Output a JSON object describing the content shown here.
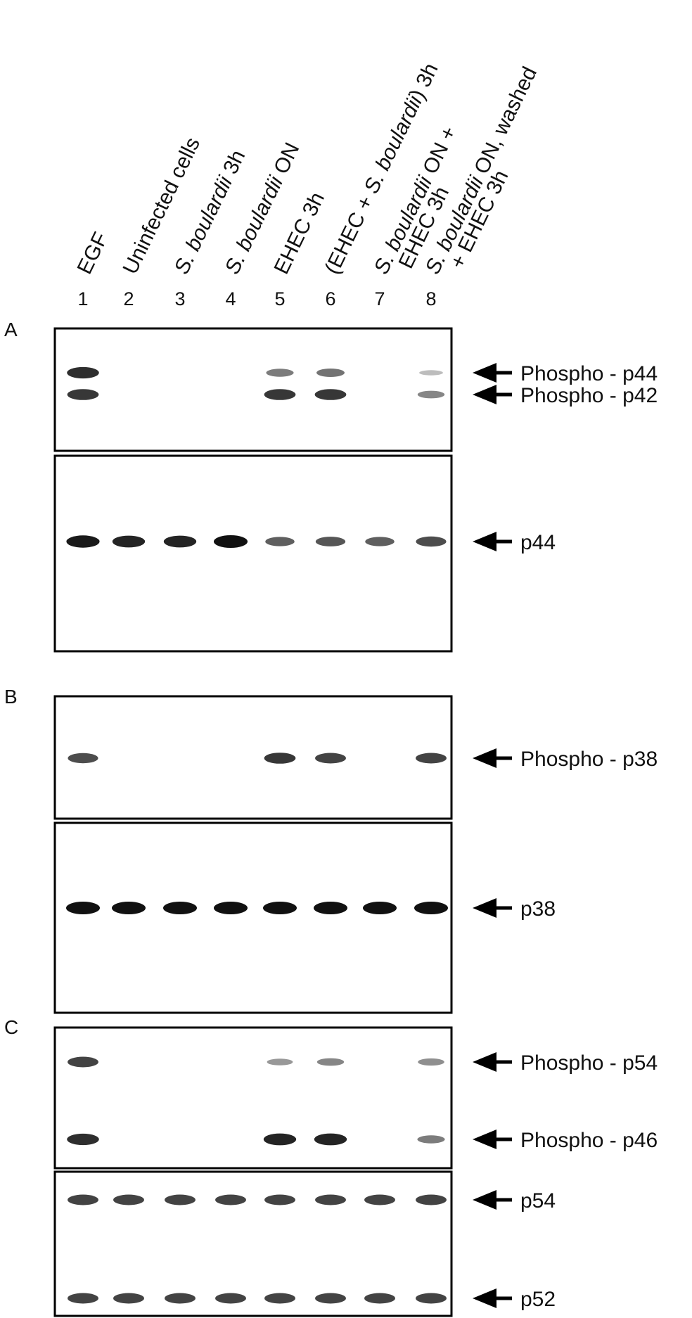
{
  "lanes": [
    {
      "number": "1",
      "condition": [
        {
          "t": "EGF",
          "i": false
        }
      ]
    },
    {
      "number": "2",
      "condition": [
        {
          "t": "Uninfected cells",
          "i": false
        }
      ]
    },
    {
      "number": "3",
      "condition": [
        {
          "t": "S. boulardii",
          "i": true
        },
        {
          "t": " 3h",
          "i": false
        }
      ]
    },
    {
      "number": "4",
      "condition": [
        {
          "t": "S. boulardii",
          "i": true
        },
        {
          "t": " ON",
          "i": false
        }
      ]
    },
    {
      "number": "5",
      "condition": [
        {
          "t": "EHEC 3h",
          "i": false
        }
      ]
    },
    {
      "number": "6",
      "condition": [
        {
          "t": "(EHEC + ",
          "i": false
        },
        {
          "t": "S. boulardii",
          "i": true
        },
        {
          "t": ") 3h",
          "i": false
        }
      ]
    },
    {
      "number": "7",
      "condition": [
        {
          "t": "S. boulardii",
          "i": true
        },
        {
          "t": " ON +",
          "i": false
        }
      ],
      "condition2": [
        {
          "t": "EHEC 3h",
          "i": false
        }
      ]
    },
    {
      "number": "8",
      "condition": [
        {
          "t": "S. boulardii",
          "i": true
        },
        {
          "t": " ON, washed",
          "i": false
        }
      ],
      "condition2": [
        {
          "t": "+ EHEC 3h",
          "i": false
        }
      ]
    }
  ],
  "panels": [
    {
      "letter": "A",
      "blots": [
        {
          "bands": [
            {
              "label": "Phospho - p44",
              "intensity": [
                0.85,
                0,
                0,
                0,
                0.45,
                0.5,
                0,
                0.12
              ]
            },
            {
              "label": "Phospho - p42",
              "intensity": [
                0.8,
                0,
                0,
                0,
                0.8,
                0.8,
                0,
                0.4
              ]
            }
          ]
        },
        {
          "bands": [
            {
              "label": "p44",
              "intensity": [
                0.95,
                0.9,
                0.9,
                1.0,
                0.6,
                0.65,
                0.6,
                0.7
              ]
            }
          ]
        }
      ]
    },
    {
      "letter": "B",
      "blots": [
        {
          "bands": [
            {
              "label": "Phospho - p38",
              "intensity": [
                0.7,
                0,
                0,
                0,
                0.8,
                0.75,
                0,
                0.75
              ]
            }
          ]
        },
        {
          "bands": [
            {
              "label": "p38",
              "intensity": [
                1.0,
                1.0,
                1.0,
                1.0,
                1.0,
                1.0,
                1.0,
                1.0
              ]
            }
          ]
        }
      ]
    },
    {
      "letter": "C",
      "blots": [
        {
          "bands": [
            {
              "label": "Phospho - p54",
              "intensity": [
                0.75,
                0,
                0,
                0,
                0.3,
                0.4,
                0,
                0.35
              ]
            },
            {
              "label": "Phospho - p46",
              "intensity": [
                0.85,
                0,
                0,
                0,
                0.9,
                0.9,
                0,
                0.45
              ]
            }
          ]
        },
        {
          "bands": [
            {
              "label": "p54",
              "intensity": [
                0.75,
                0.75,
                0.75,
                0.75,
                0.75,
                0.75,
                0.75,
                0.75
              ]
            },
            {
              "label": "p52",
              "intensity": [
                0.75,
                0.75,
                0.75,
                0.75,
                0.75,
                0.75,
                0.75,
                0.75
              ]
            }
          ]
        }
      ]
    }
  ],
  "colors": {
    "band": "#111111",
    "frame": "#000000",
    "background": "#ffffff"
  }
}
